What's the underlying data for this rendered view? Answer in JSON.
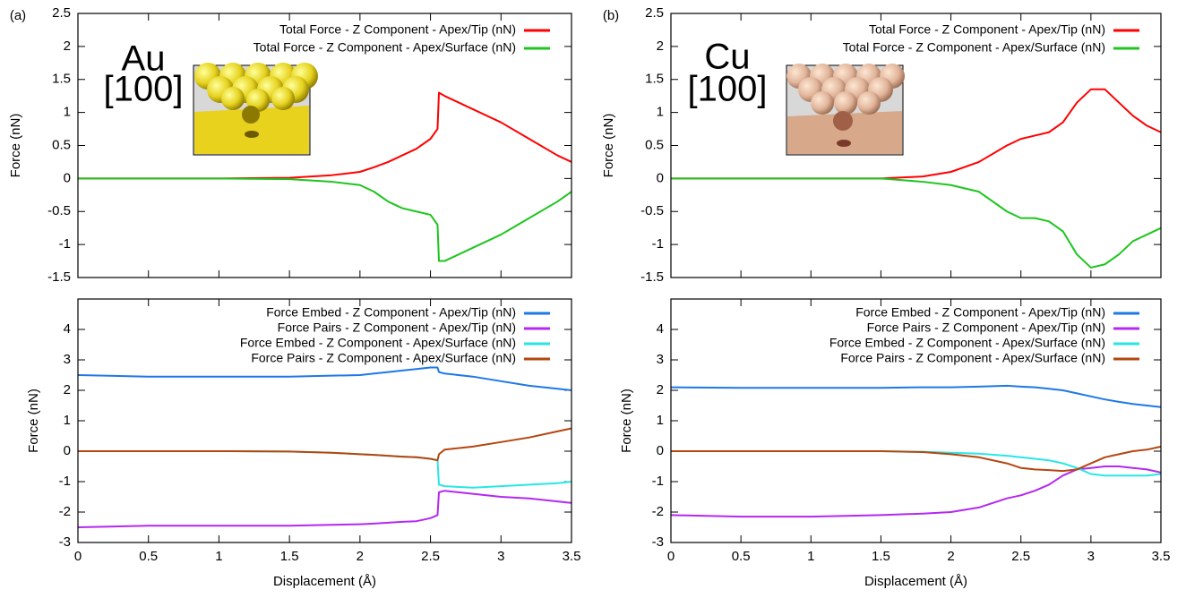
{
  "chart_data": [
    {
      "type": "line",
      "panel_label": "(a)",
      "annotations": [
        "Au",
        "[100]"
      ],
      "ylabel": "Force (nN)",
      "x": [
        0,
        0.5,
        1.0,
        1.5,
        1.8,
        2.0,
        2.1,
        2.2,
        2.3,
        2.4,
        2.5,
        2.55,
        2.56,
        2.6,
        2.8,
        3.0,
        3.2,
        3.4,
        3.5
      ],
      "series": [
        {
          "name": "Total Force - Z Component - Apex/Tip (nN)",
          "color": "#ff0000",
          "values": [
            0,
            0,
            0,
            0.01,
            0.05,
            0.1,
            0.17,
            0.25,
            0.35,
            0.45,
            0.6,
            0.75,
            1.3,
            1.25,
            1.05,
            0.85,
            0.6,
            0.35,
            0.25
          ]
        },
        {
          "name": "Total Force - Z Component - Apex/Surface (nN)",
          "color": "#1ec51e",
          "values": [
            0,
            0,
            0,
            -0.01,
            -0.05,
            -0.1,
            -0.2,
            -0.35,
            -0.45,
            -0.5,
            -0.55,
            -0.7,
            -1.25,
            -1.25,
            -1.05,
            -0.85,
            -0.6,
            -0.35,
            -0.2
          ]
        }
      ],
      "xlim": [
        0,
        3.5
      ],
      "ylim": [
        -1.5,
        2.5
      ],
      "xticks": [
        0,
        0.5,
        1,
        1.5,
        2,
        2.5,
        3,
        3.5
      ],
      "yticks": [
        2.5,
        2,
        1.5,
        1,
        0.5,
        0,
        -0.5,
        -1,
        -1.5
      ],
      "show_xtick_labels": false,
      "legend": "upper right"
    },
    {
      "type": "line",
      "ylabel": "Force (nN)",
      "xlabel": "Displacement (Å)",
      "x": [
        0,
        0.5,
        1.0,
        1.5,
        1.8,
        2.0,
        2.1,
        2.2,
        2.3,
        2.4,
        2.5,
        2.55,
        2.56,
        2.6,
        2.8,
        3.0,
        3.2,
        3.4,
        3.5
      ],
      "series": [
        {
          "name": "Force Embed - Z Component - Apex/Tip (nN)",
          "color": "#1e78e6",
          "values": [
            2.5,
            2.45,
            2.45,
            2.45,
            2.48,
            2.5,
            2.55,
            2.6,
            2.65,
            2.7,
            2.75,
            2.75,
            2.6,
            2.55,
            2.45,
            2.3,
            2.15,
            2.05,
            2.0
          ]
        },
        {
          "name": "Force Pairs - Z Component - Apex/Tip (nN)",
          "color": "#b428f0",
          "values": [
            -2.5,
            -2.45,
            -2.45,
            -2.45,
            -2.42,
            -2.4,
            -2.38,
            -2.35,
            -2.32,
            -2.3,
            -2.2,
            -2.1,
            -1.35,
            -1.3,
            -1.4,
            -1.5,
            -1.55,
            -1.65,
            -1.7
          ]
        },
        {
          "name": "Force Embed - Z Component - Apex/Surface (nN)",
          "color": "#28e6e6",
          "values": [
            0,
            0,
            0,
            -0.01,
            -0.05,
            -0.1,
            -0.12,
            -0.15,
            -0.18,
            -0.2,
            -0.25,
            -0.3,
            -1.1,
            -1.15,
            -1.2,
            -1.15,
            -1.1,
            -1.05,
            -1.0
          ]
        },
        {
          "name": "Force Pairs - Z Component - Apex/Surface (nN)",
          "color": "#b4460f",
          "values": [
            0,
            0,
            0,
            -0.01,
            -0.05,
            -0.1,
            -0.12,
            -0.15,
            -0.18,
            -0.2,
            -0.25,
            -0.3,
            -0.1,
            0.05,
            0.15,
            0.3,
            0.45,
            0.65,
            0.75
          ]
        }
      ],
      "xlim": [
        0,
        3.5
      ],
      "ylim": [
        -3,
        5
      ],
      "xticks": [
        0,
        0.5,
        1,
        1.5,
        2,
        2.5,
        3,
        3.5
      ],
      "yticks": [
        4,
        3,
        2,
        1,
        0,
        -1,
        -2,
        -3
      ],
      "show_xtick_labels": true,
      "legend": "upper right"
    },
    {
      "type": "line",
      "panel_label": "(b)",
      "annotations": [
        "Cu",
        "[100]"
      ],
      "ylabel": "Force (nN)",
      "x": [
        0,
        0.5,
        1.0,
        1.5,
        1.8,
        2.0,
        2.2,
        2.4,
        2.5,
        2.6,
        2.7,
        2.8,
        2.9,
        3.0,
        3.1,
        3.2,
        3.3,
        3.4,
        3.5
      ],
      "series": [
        {
          "name": "Total Force - Z Component - Apex/Tip (nN)",
          "color": "#ff0000",
          "values": [
            0,
            0,
            0,
            0,
            0.03,
            0.1,
            0.25,
            0.5,
            0.6,
            0.65,
            0.7,
            0.85,
            1.15,
            1.35,
            1.35,
            1.15,
            0.95,
            0.8,
            0.7
          ]
        },
        {
          "name": "Total Force - Z Component - Apex/Surface (nN)",
          "color": "#1ec51e",
          "values": [
            0,
            0,
            0,
            0,
            -0.05,
            -0.1,
            -0.2,
            -0.5,
            -0.6,
            -0.6,
            -0.65,
            -0.8,
            -1.15,
            -1.35,
            -1.3,
            -1.15,
            -0.95,
            -0.85,
            -0.75
          ]
        }
      ],
      "xlim": [
        0,
        3.5
      ],
      "ylim": [
        -1.5,
        2.5
      ],
      "xticks": [
        0,
        0.5,
        1,
        1.5,
        2,
        2.5,
        3,
        3.5
      ],
      "yticks": [
        2.5,
        2,
        1.5,
        1,
        0.5,
        0,
        -0.5,
        -1,
        -1.5
      ],
      "show_xtick_labels": false,
      "legend": "upper right"
    },
    {
      "type": "line",
      "ylabel": "Force (nN)",
      "xlabel": "Displacement (Å)",
      "x": [
        0,
        0.5,
        1.0,
        1.5,
        1.8,
        2.0,
        2.2,
        2.4,
        2.5,
        2.6,
        2.7,
        2.8,
        2.9,
        3.0,
        3.1,
        3.2,
        3.3,
        3.4,
        3.5
      ],
      "series": [
        {
          "name": "Force Embed - Z Component - Apex/Tip (nN)",
          "color": "#1e78e6",
          "values": [
            2.1,
            2.08,
            2.08,
            2.08,
            2.1,
            2.1,
            2.12,
            2.15,
            2.12,
            2.1,
            2.05,
            2.0,
            1.9,
            1.8,
            1.7,
            1.62,
            1.55,
            1.5,
            1.45
          ]
        },
        {
          "name": "Force Pairs - Z Component - Apex/Tip (nN)",
          "color": "#b428f0",
          "values": [
            -2.1,
            -2.15,
            -2.15,
            -2.1,
            -2.05,
            -2.0,
            -1.85,
            -1.55,
            -1.45,
            -1.3,
            -1.1,
            -0.8,
            -0.6,
            -0.55,
            -0.5,
            -0.5,
            -0.55,
            -0.6,
            -0.7
          ]
        },
        {
          "name": "Force Embed - Z Component - Apex/Surface (nN)",
          "color": "#28e6e6",
          "values": [
            0,
            0,
            0,
            0,
            -0.02,
            -0.05,
            -0.08,
            -0.15,
            -0.2,
            -0.25,
            -0.3,
            -0.4,
            -0.55,
            -0.75,
            -0.8,
            -0.8,
            -0.8,
            -0.8,
            -0.75
          ]
        },
        {
          "name": "Force Pairs - Z Component - Apex/Surface (nN)",
          "color": "#b4460f",
          "values": [
            0,
            0,
            0,
            0,
            -0.03,
            -0.1,
            -0.2,
            -0.4,
            -0.55,
            -0.6,
            -0.62,
            -0.65,
            -0.6,
            -0.4,
            -0.2,
            -0.1,
            0,
            0.05,
            0.15
          ]
        }
      ],
      "xlim": [
        0,
        3.5
      ],
      "ylim": [
        -3,
        5
      ],
      "xticks": [
        0,
        0.5,
        1,
        1.5,
        2,
        2.5,
        3,
        3.5
      ],
      "yticks": [
        4,
        3,
        2,
        1,
        0,
        -1,
        -2,
        -3
      ],
      "show_xtick_labels": true,
      "legend": "upper right"
    }
  ]
}
